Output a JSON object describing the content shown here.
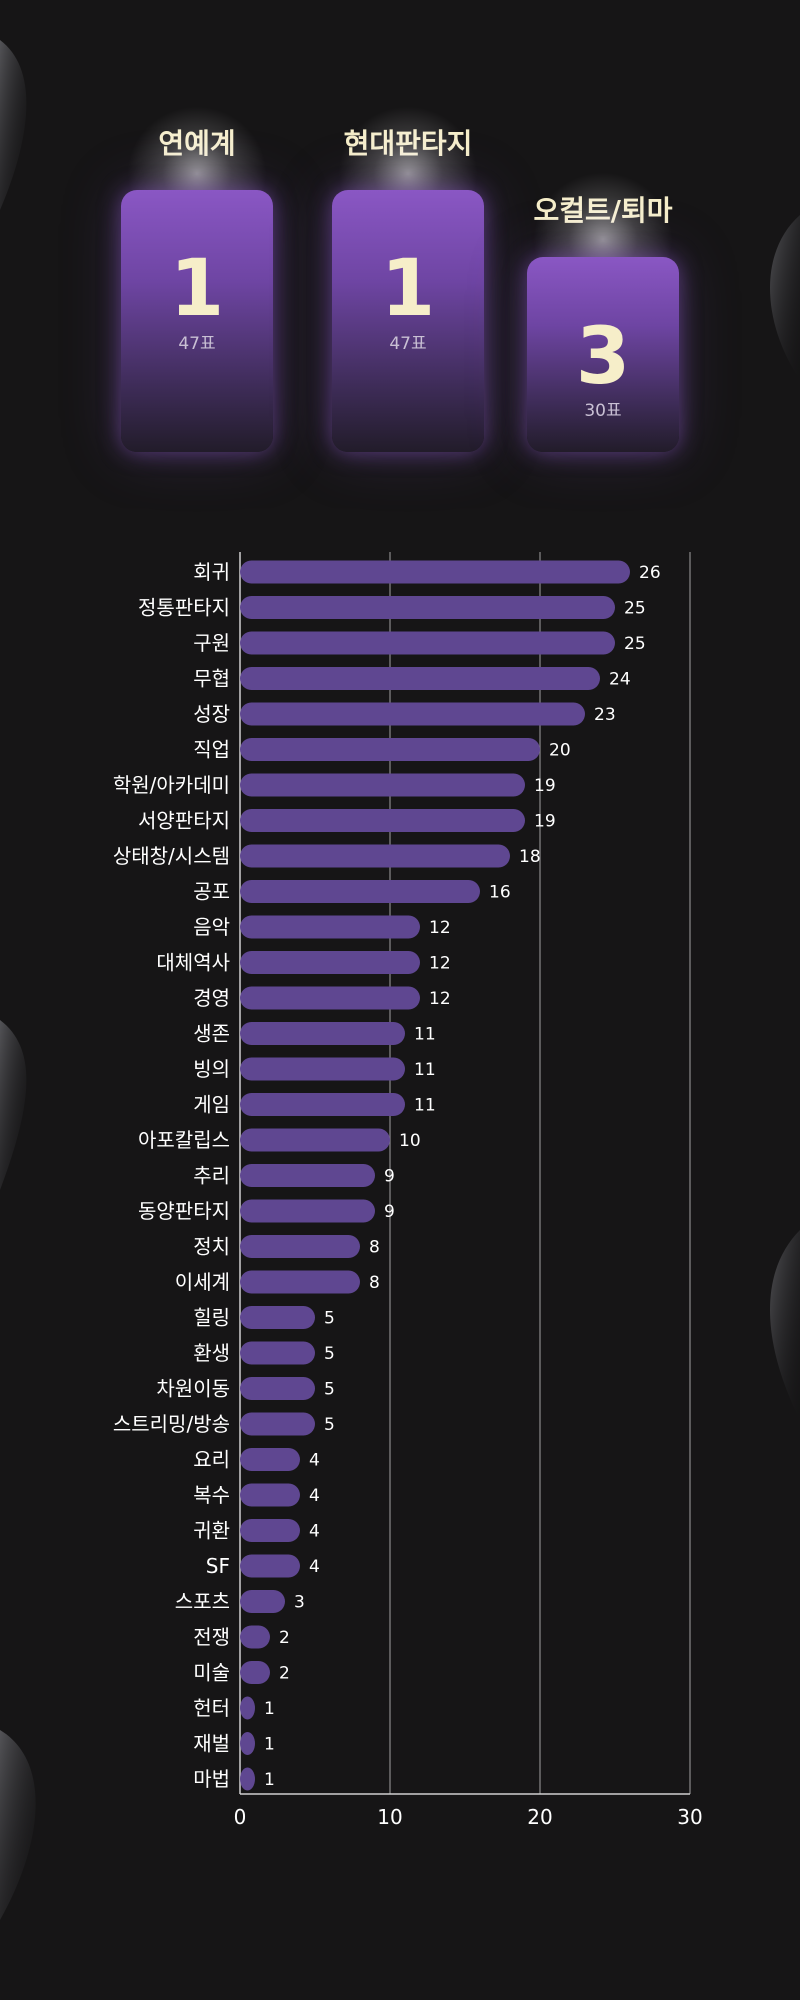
{
  "podium": [
    {
      "category": "연예계",
      "rank": "1",
      "votes": "47표"
    },
    {
      "category": "현대판타지",
      "rank": "1",
      "votes": "47표"
    },
    {
      "category": "오컬트/퇴마",
      "rank": "3",
      "votes": "30표"
    }
  ],
  "colors": {
    "bar": "#5f4791",
    "background": "#161516",
    "text": "#ffffff",
    "accent_text": "#f6eec9",
    "gridline": "#8a8a8a"
  },
  "chart_data": {
    "type": "bar",
    "orientation": "horizontal",
    "title": "",
    "xlabel": "",
    "ylabel": "",
    "xlim": [
      0,
      30
    ],
    "x_ticks": [
      "0",
      "10",
      "20",
      "30"
    ],
    "grid": true,
    "categories": [
      "회귀",
      "정통판타지",
      "구원",
      "무협",
      "성장",
      "직업",
      "학원/아카데미",
      "서양판타지",
      "상태창/시스템",
      "공포",
      "음악",
      "대체역사",
      "경영",
      "생존",
      "빙의",
      "게임",
      "아포칼립스",
      "추리",
      "동양판타지",
      "정치",
      "이세계",
      "힐링",
      "환생",
      "차원이동",
      "스트리밍/방송",
      "요리",
      "복수",
      "귀환",
      "SF",
      "스포츠",
      "전쟁",
      "미술",
      "헌터",
      "재벌",
      "마법"
    ],
    "values": [
      26,
      25,
      25,
      24,
      23,
      20,
      19,
      19,
      18,
      16,
      12,
      12,
      12,
      11,
      11,
      11,
      10,
      9,
      9,
      8,
      8,
      5,
      5,
      5,
      5,
      4,
      4,
      4,
      4,
      3,
      2,
      2,
      1,
      1,
      1
    ]
  }
}
